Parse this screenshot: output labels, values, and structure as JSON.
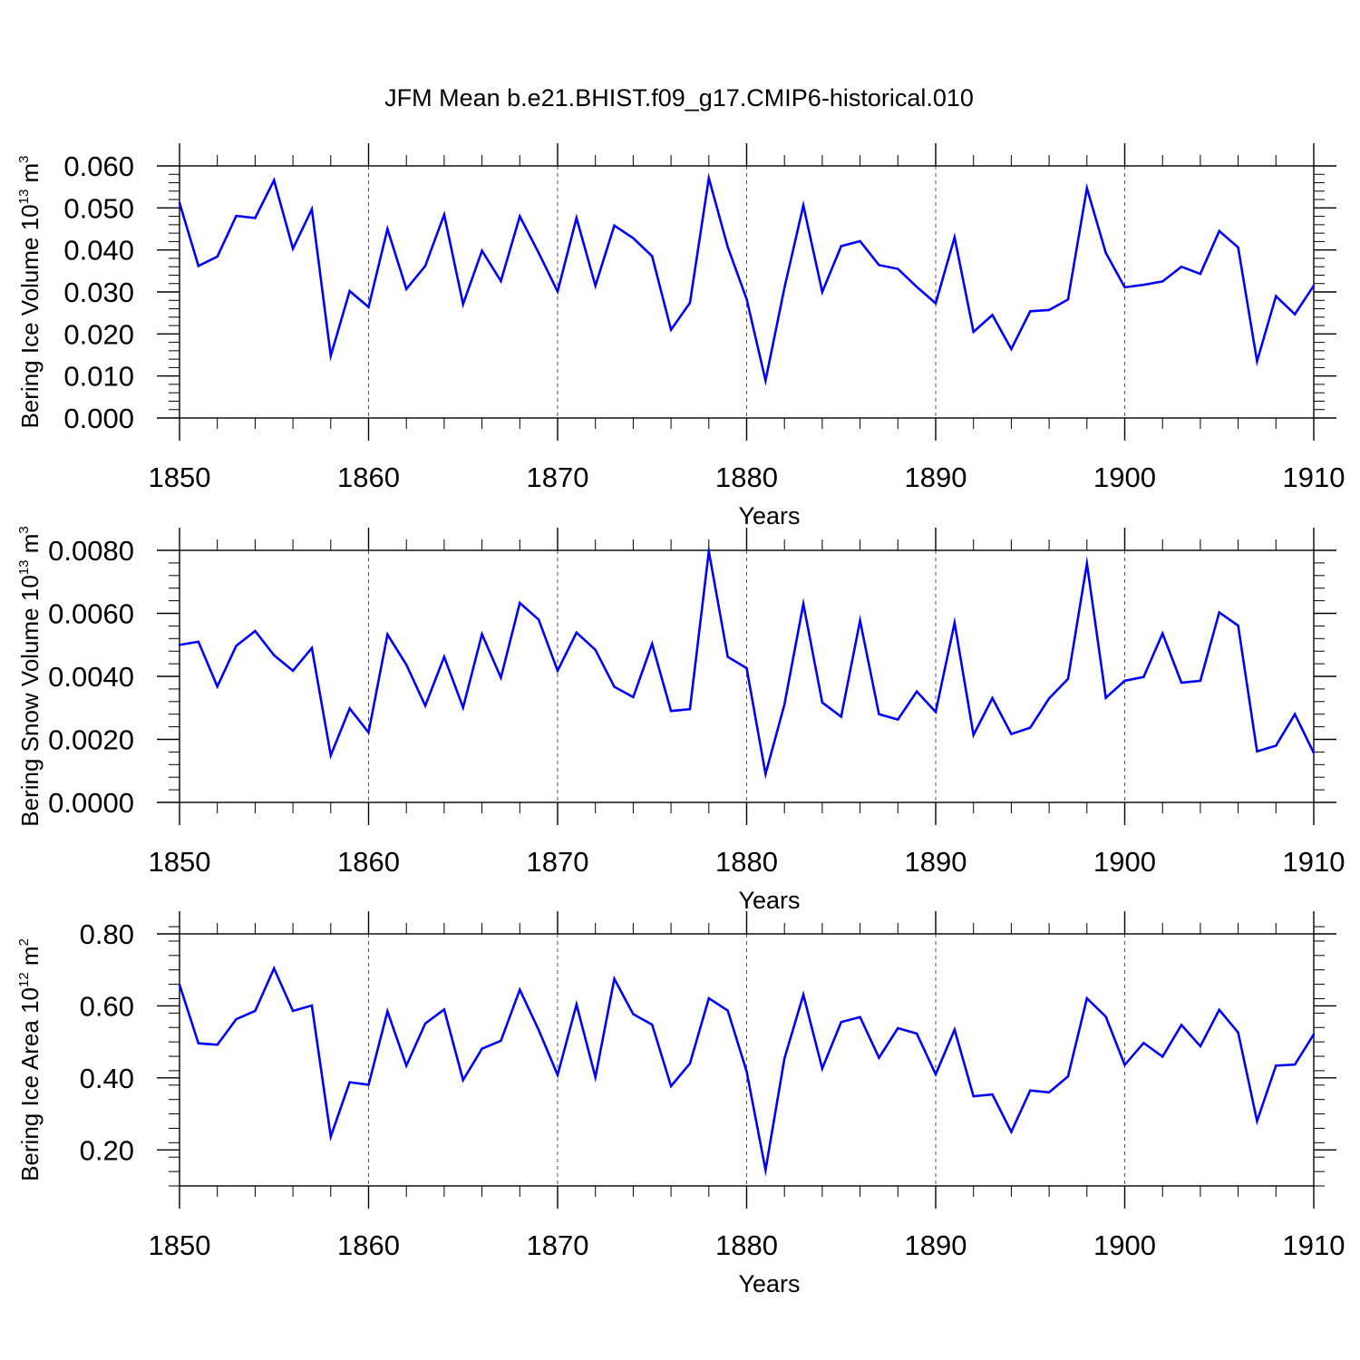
{
  "title": "JFM Mean b.e21.BHIST.f09_g17.CMIP6-historical.010",
  "colors": {
    "line": "#0000ff",
    "axis": "#000000",
    "grid": "#555555"
  },
  "chart_data": [
    {
      "type": "line",
      "ylabel": {
        "base": "Bering Ice Volume 10",
        "exp1": "13",
        "unit": " m",
        "exp2": "3"
      },
      "xlabel": "Years",
      "xlim": [
        1850,
        1910
      ],
      "ylim": [
        0.0,
        0.06
      ],
      "y_ticks": [
        "0.000",
        "0.010",
        "0.020",
        "0.030",
        "0.040",
        "0.050",
        "0.060"
      ],
      "y_tick_values": [
        0.0,
        0.01,
        0.02,
        0.03,
        0.04,
        0.05,
        0.06
      ],
      "y_minor_step": 0.002,
      "x_ticks": [
        "1850",
        "1860",
        "1870",
        "1880",
        "1890",
        "1900",
        "1910"
      ],
      "x_tick_values": [
        1850,
        1860,
        1870,
        1880,
        1890,
        1900,
        1910
      ],
      "x_minor_step": 2,
      "x_grid": true,
      "series": [
        {
          "x_start": 1850,
          "values": [
            0.0512,
            0.0362,
            0.0384,
            0.0481,
            0.0476,
            0.0566,
            0.0403,
            0.0497,
            0.0148,
            0.0302,
            0.0264,
            0.045,
            0.0307,
            0.0362,
            0.0484,
            0.0271,
            0.0398,
            0.0326,
            0.048,
            0.0393,
            0.0301,
            0.0476,
            0.0315,
            0.0458,
            0.0428,
            0.0385,
            0.021,
            0.0274,
            0.0571,
            0.0407,
            0.0283,
            0.0089,
            0.031,
            0.0506,
            0.03,
            0.0409,
            0.0421,
            0.0364,
            0.0355,
            0.0312,
            0.0273,
            0.043,
            0.0205,
            0.0245,
            0.0164,
            0.0254,
            0.0257,
            0.0282,
            0.0547,
            0.0393,
            0.0311,
            0.0317,
            0.0325,
            0.036,
            0.0343,
            0.0445,
            0.0406,
            0.0135,
            0.029,
            0.0247,
            0.0315
          ]
        }
      ]
    },
    {
      "type": "line",
      "ylabel": {
        "base": "Bering Snow Volume 10",
        "exp1": "13",
        "unit": " m",
        "exp2": "3"
      },
      "xlabel": "Years",
      "xlim": [
        1850,
        1910
      ],
      "ylim": [
        0.0,
        0.008
      ],
      "y_ticks": [
        "0.0000",
        "0.0020",
        "0.0040",
        "0.0060",
        "0.0080"
      ],
      "y_tick_values": [
        0.0,
        0.002,
        0.004,
        0.006,
        0.008
      ],
      "y_minor_step": 0.0004,
      "x_ticks": [
        "1850",
        "1860",
        "1870",
        "1880",
        "1890",
        "1900",
        "1910"
      ],
      "x_tick_values": [
        1850,
        1860,
        1870,
        1880,
        1890,
        1900,
        1910
      ],
      "x_minor_step": 2,
      "x_grid": true,
      "series": [
        {
          "x_start": 1850,
          "values": [
            0.005,
            0.0051,
            0.00368,
            0.00497,
            0.00544,
            0.00467,
            0.00418,
            0.0049,
            0.00149,
            0.00298,
            0.00222,
            0.00533,
            0.00437,
            0.00307,
            0.00462,
            0.00301,
            0.00534,
            0.00396,
            0.00633,
            0.0058,
            0.00418,
            0.00539,
            0.00484,
            0.00367,
            0.00334,
            0.00503,
            0.0029,
            0.00296,
            0.00797,
            0.00462,
            0.00426,
            0.0009,
            0.00311,
            0.0063,
            0.00317,
            0.00272,
            0.00577,
            0.0028,
            0.00263,
            0.00352,
            0.00287,
            0.0057,
            0.00214,
            0.00331,
            0.00217,
            0.00237,
            0.0033,
            0.00392,
            0.00758,
            0.00332,
            0.00386,
            0.00398,
            0.00536,
            0.0038,
            0.00386,
            0.00603,
            0.00561,
            0.00162,
            0.0018,
            0.0028,
            0.00157
          ]
        }
      ]
    },
    {
      "type": "line",
      "ylabel": {
        "base": "Bering Ice Area 10",
        "exp1": "12",
        "unit": " m",
        "exp2": "2"
      },
      "xlabel": "Years",
      "xlim": [
        1850,
        1910
      ],
      "ylim": [
        0.1,
        0.8
      ],
      "y_ticks": [
        "0.20",
        "0.40",
        "0.60",
        "0.80"
      ],
      "y_tick_values": [
        0.2,
        0.4,
        0.6,
        0.8
      ],
      "y_minor_step": 0.04,
      "x_ticks": [
        "1850",
        "1860",
        "1870",
        "1880",
        "1890",
        "1900",
        "1910"
      ],
      "x_tick_values": [
        1850,
        1860,
        1870,
        1880,
        1890,
        1900,
        1910
      ],
      "x_minor_step": 2,
      "x_grid": true,
      "series": [
        {
          "x_start": 1850,
          "values": [
            0.659,
            0.496,
            0.492,
            0.563,
            0.586,
            0.704,
            0.586,
            0.601,
            0.237,
            0.388,
            0.381,
            0.585,
            0.434,
            0.551,
            0.59,
            0.394,
            0.481,
            0.503,
            0.645,
            0.533,
            0.408,
            0.604,
            0.402,
            0.675,
            0.577,
            0.548,
            0.377,
            0.44,
            0.621,
            0.587,
            0.418,
            0.144,
            0.454,
            0.631,
            0.426,
            0.555,
            0.569,
            0.456,
            0.538,
            0.523,
            0.41,
            0.534,
            0.349,
            0.354,
            0.25,
            0.365,
            0.36,
            0.404,
            0.621,
            0.57,
            0.436,
            0.497,
            0.459,
            0.547,
            0.488,
            0.589,
            0.526,
            0.28,
            0.434,
            0.437,
            0.521
          ]
        }
      ]
    }
  ]
}
